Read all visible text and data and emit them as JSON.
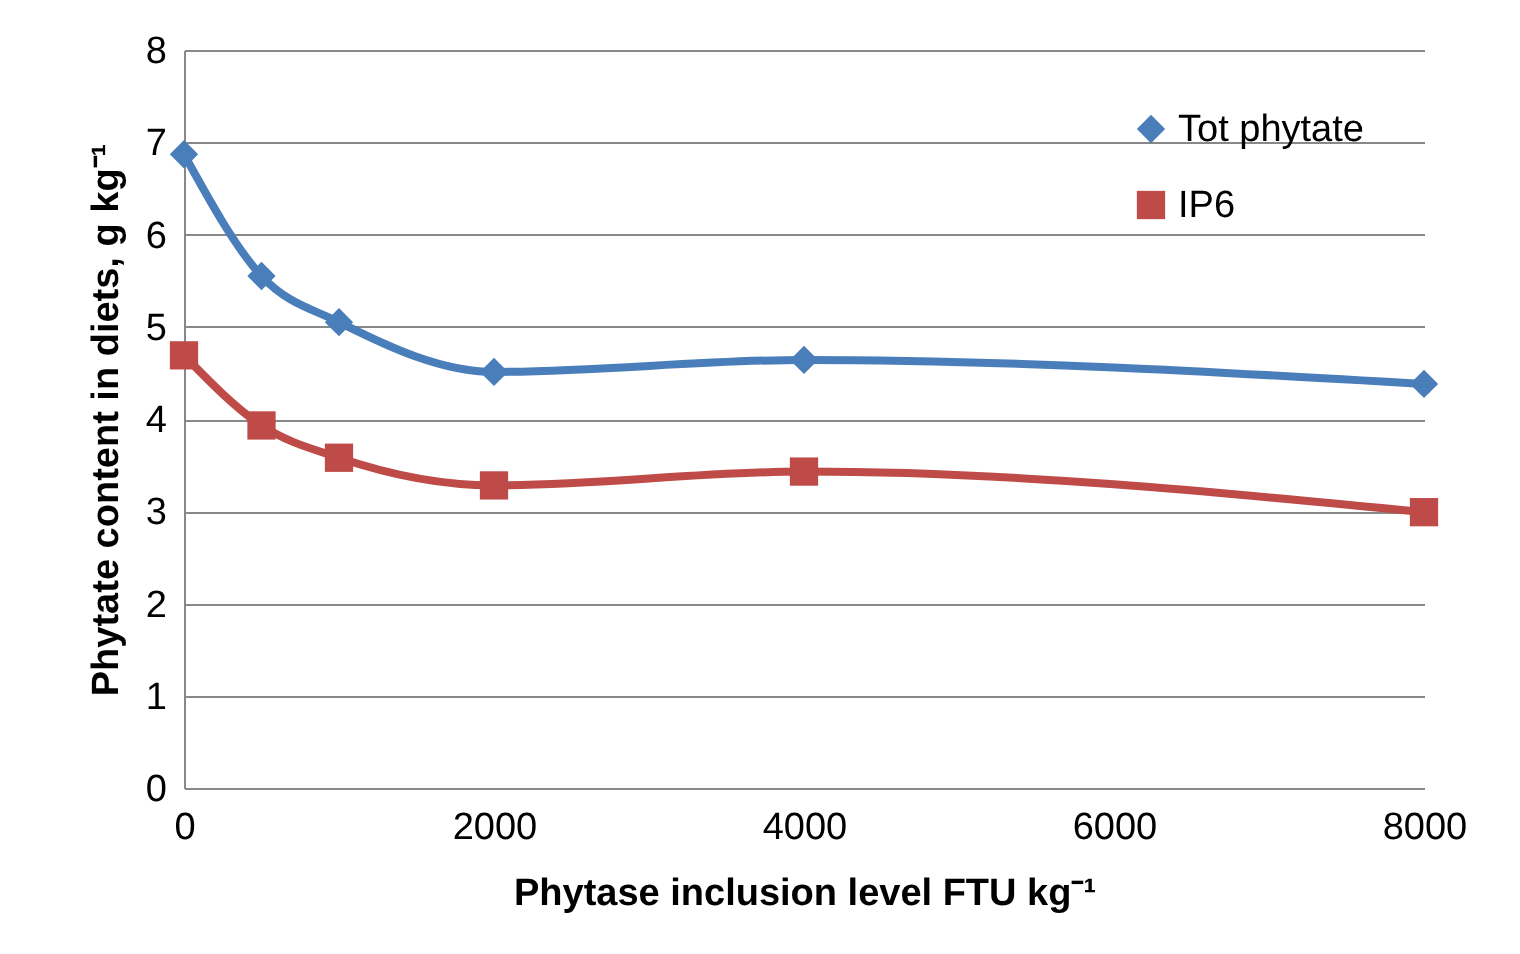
{
  "chart_data": {
    "type": "line",
    "xlabel": "Phytase inclusion level FTU kg⁻¹",
    "ylabel": "Phytate content in diets, g kg⁻¹",
    "x": [
      0,
      500,
      1000,
      2000,
      4000,
      8000
    ],
    "series": [
      {
        "name": "Tot phytate",
        "color": "#4a7ebb",
        "marker": "diamond",
        "values": [
          6.87,
          5.55,
          5.05,
          4.51,
          4.64,
          4.38
        ]
      },
      {
        "name": "IP6",
        "color": "#be4b48",
        "marker": "square",
        "values": [
          4.69,
          3.93,
          3.58,
          3.28,
          3.43,
          2.99
        ]
      }
    ],
    "xlim": [
      0,
      8000
    ],
    "xticks": [
      0,
      2000,
      4000,
      6000,
      8000
    ],
    "ylim": [
      0,
      8
    ],
    "yticks": [
      0,
      1,
      2,
      3,
      4,
      5,
      6,
      7,
      8
    ],
    "grid": "y",
    "legend": "top right",
    "line_style": "solid"
  }
}
